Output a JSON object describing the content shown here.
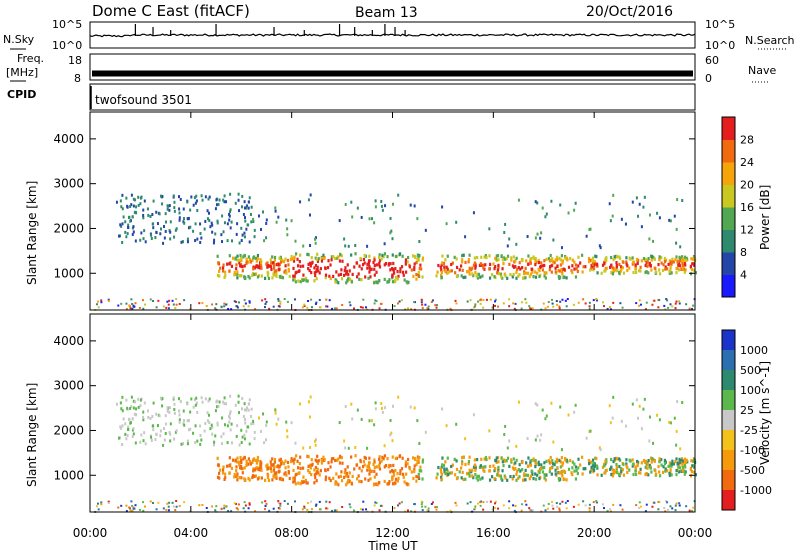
{
  "header": {
    "station": "Dome C East (fitACF)",
    "beam": "Beam 13",
    "date": "20/Oct/2016"
  },
  "side_labels": {
    "nsky": "N.Sky",
    "freq": "Freq.",
    "mhz": "[MHz]",
    "cpid": "CPID",
    "nsearch": "N.Search",
    "nave": "Nave"
  },
  "cpid_value": "twofsound 3501",
  "chart_data": [
    {
      "type": "line",
      "name": "noise",
      "series": [
        {
          "name": "N.Sky"
        },
        {
          "name": "N.Search"
        }
      ],
      "left_ticks": [
        "10^5",
        "10^0"
      ],
      "right_ticks": [
        "10^5",
        "10^0"
      ],
      "spike_hours": [
        1.8,
        2.5,
        3.2,
        5.0,
        7.3,
        8.5,
        9.9,
        10.5,
        11.2,
        11.7,
        12.1,
        12.5
      ]
    },
    {
      "type": "line",
      "name": "frequency",
      "series": [
        {
          "name": "Freq."
        },
        {
          "name": "Nave"
        }
      ],
      "left_ticks": [
        "18",
        "8"
      ],
      "right_ticks": [
        "60",
        "0"
      ],
      "freq_mhz": 10.5
    },
    {
      "type": "heatmap",
      "name": "power",
      "ylabel": "Slant Range [km]",
      "ylim": [
        180,
        4600
      ],
      "yticks": [
        1000,
        2000,
        3000,
        4000
      ],
      "xlim": [
        0,
        24
      ],
      "colorbar_label": "Power [dB]",
      "colorbar_ticks": [
        "4",
        "8",
        "12",
        "16",
        "20",
        "24",
        "28"
      ],
      "colorbar_range": [
        0,
        32
      ],
      "colors": [
        "#1a1aff",
        "#2346a8",
        "#2e8a6e",
        "#52a852",
        "#c8c820",
        "#f5a50a",
        "#f26a0f",
        "#e41e1e"
      ]
    },
    {
      "type": "heatmap",
      "name": "velocity",
      "ylabel": "Slant Range [km]",
      "ylim": [
        180,
        4600
      ],
      "yticks": [
        1000,
        2000,
        3000,
        4000
      ],
      "xlim": [
        0,
        24
      ],
      "xlabel": "Time UT",
      "xticks": [
        "00:00",
        "04:00",
        "08:00",
        "12:00",
        "16:00",
        "20:00",
        "00:00"
      ],
      "colorbar_label": "Velocity [m s^-1]",
      "colorbar_ticks": [
        "1000",
        "500",
        "100",
        "25",
        "-25",
        "-100",
        "-500",
        "-1000"
      ],
      "colors": [
        "#1a33c8",
        "#2b6fb0",
        "#2e8a6e",
        "#5ab94a",
        "#c8c8c8",
        "#f2c21a",
        "#f59a0a",
        "#f26a0f",
        "#e41e1e"
      ]
    }
  ]
}
